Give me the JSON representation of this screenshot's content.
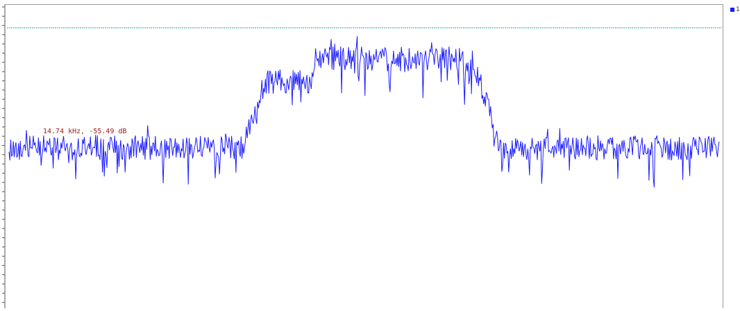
{
  "chart_data": {
    "type": "line",
    "title": "",
    "xlabel": "",
    "ylabel": "",
    "grid": false,
    "legend_position": "top-right",
    "series": [
      {
        "color": "#1a1aff",
        "segments": [
          {
            "from": 0.0,
            "to": 0.33,
            "level": 0.0,
            "spread": 1.0
          },
          {
            "from": 0.33,
            "to": 0.36,
            "ramp_to": 1.0
          },
          {
            "from": 0.36,
            "to": 0.43,
            "level": 1.0,
            "spread": 1.0
          },
          {
            "from": 0.43,
            "to": 0.64,
            "level": 1.35,
            "spread": 1.0
          },
          {
            "from": 0.64,
            "to": 0.66,
            "level": 1.15,
            "spread": 1.0
          },
          {
            "from": 0.66,
            "to": 0.69,
            "ramp_to": 0.0
          },
          {
            "from": 0.69,
            "to": 1.0,
            "level": 0.0,
            "spread": 1.0
          }
        ]
      }
    ],
    "reference_line": {
      "color": "#20a0b0",
      "style": "dotted"
    },
    "marker": {
      "label": "14.74 kHz, -55.49 dB",
      "color": "#a01c1c"
    }
  },
  "legend": {
    "swatch_color": "#1a1aff",
    "label": "1"
  }
}
